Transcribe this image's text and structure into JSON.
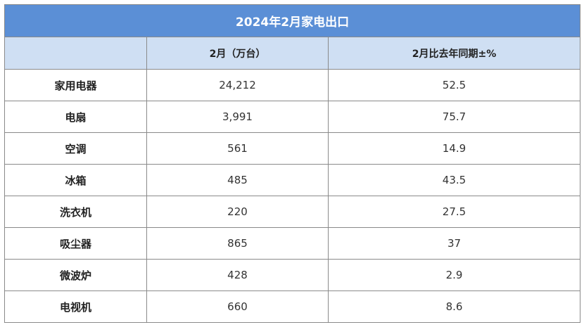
{
  "table": {
    "title": "2024年2月家电出口",
    "columns": [
      "",
      "2月（万台）",
      "2月比去年同期±%"
    ],
    "rows": [
      {
        "name": "家用电器",
        "units": "24,212",
        "yoy": "52.5"
      },
      {
        "name": "电扇",
        "units": "3,991",
        "yoy": "75.7"
      },
      {
        "name": "空调",
        "units": "561",
        "yoy": "14.9"
      },
      {
        "name": "冰箱",
        "units": "485",
        "yoy": "43.5"
      },
      {
        "name": "洗衣机",
        "units": "220",
        "yoy": "27.5"
      },
      {
        "name": "吸尘器",
        "units": "865",
        "yoy": "37"
      },
      {
        "name": "微波炉",
        "units": "428",
        "yoy": "2.9"
      },
      {
        "name": "电视机",
        "units": "660",
        "yoy": "8.6"
      }
    ]
  },
  "colors": {
    "title_bg": "#5b8fd6",
    "header_bg": "#cfdff3",
    "border": "#8a8a8a"
  }
}
